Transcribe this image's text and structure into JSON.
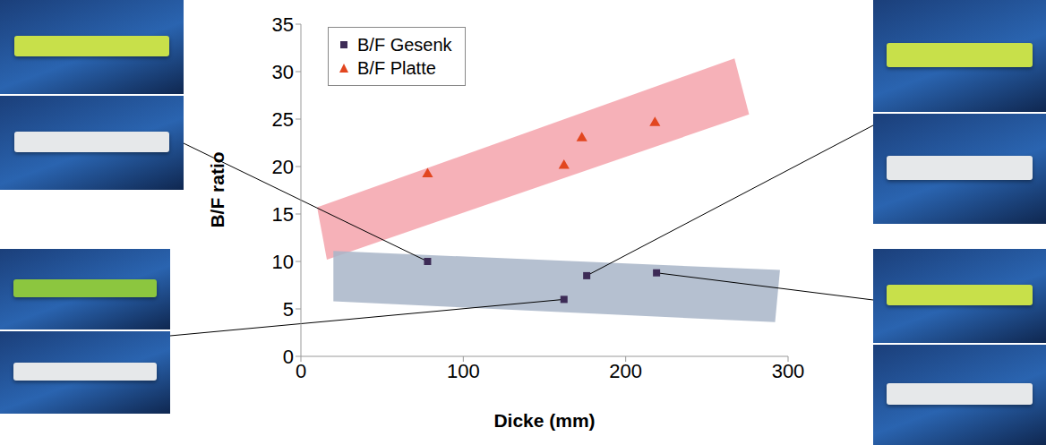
{
  "chart_data": {
    "type": "scatter",
    "x_label": "Dicke (mm)",
    "y_label": "B/F ratio",
    "xlim": [
      0,
      300
    ],
    "xticks": [
      0,
      100,
      200,
      300
    ],
    "ylim": [
      0,
      35
    ],
    "yticks": [
      0,
      5,
      10,
      15,
      20,
      25,
      30,
      35
    ],
    "grid": false,
    "legend": "upper left",
    "series": [
      {
        "name": "B/F Gesenk",
        "color": "#3d2b56",
        "marker": "square",
        "x": [
          78,
          162,
          176,
          219
        ],
        "values": [
          10,
          6,
          8.5,
          8.8
        ]
      },
      {
        "name": "B/F Platte",
        "color": "#e2461f",
        "marker": "triangle",
        "x": [
          78,
          162,
          173,
          218
        ],
        "values": [
          19.2,
          20.1,
          23,
          24.6
        ]
      }
    ],
    "bands": [
      {
        "color": "#f4a3ab",
        "points": [
          [
            10,
            15.7
          ],
          [
            267,
            31.4
          ],
          [
            276,
            25.5
          ],
          [
            16,
            10.2
          ]
        ]
      },
      {
        "color": "#a8b5c8",
        "points": [
          [
            20,
            11.1
          ],
          [
            295,
            9.1
          ],
          [
            292,
            3.6
          ],
          [
            20,
            5.8
          ]
        ]
      }
    ]
  }
}
